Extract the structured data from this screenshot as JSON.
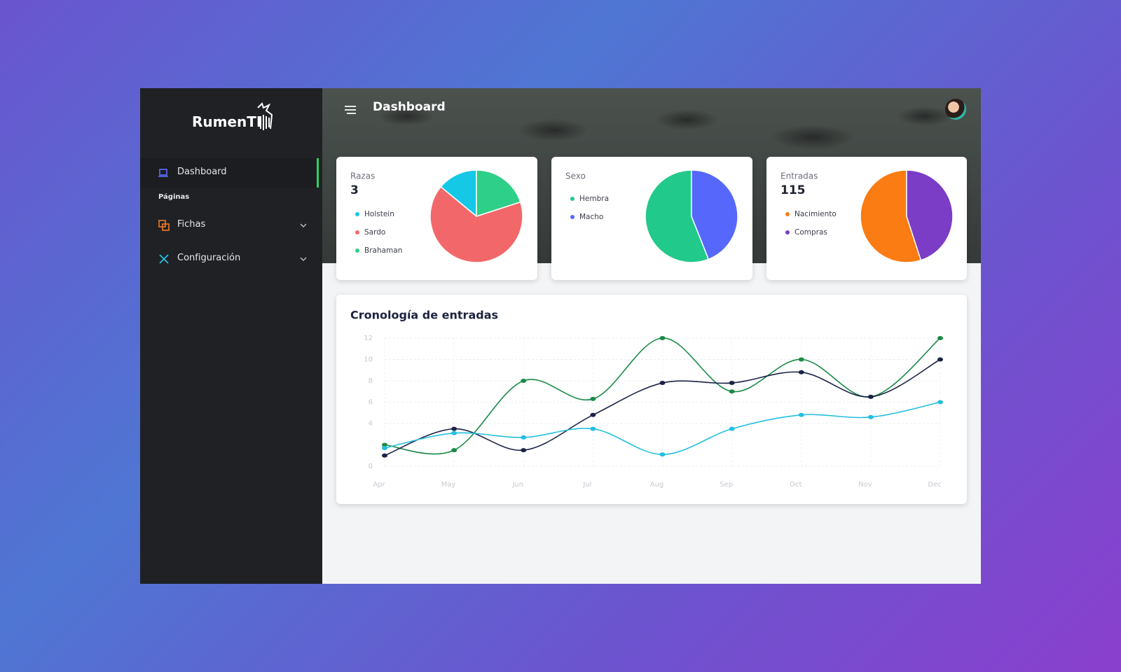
{
  "sidebar": {
    "brand": "RumenTI",
    "items": [
      "Dashboard"
    ],
    "section": "Páginas",
    "groups": [
      "Fichas",
      "Configuración"
    ]
  },
  "header": {
    "title": "Dashboard"
  },
  "chart_data": [
    {
      "type": "pie",
      "title": "Razas",
      "total": 3,
      "categories": [
        "Holstein",
        "Sardo",
        "Brahaman"
      ],
      "values": [
        14,
        66,
        20
      ],
      "colors": [
        "#14c8e6",
        "#f2686a",
        "#2ecf88"
      ]
    },
    {
      "type": "pie",
      "title": "Sexo",
      "categories": [
        "Hembra",
        "Macho"
      ],
      "values": [
        56,
        44
      ],
      "colors": [
        "#21c98a",
        "#5568fb"
      ]
    },
    {
      "type": "pie",
      "title": "Entradas",
      "total": 115,
      "categories": [
        "Nacimiento",
        "Compras"
      ],
      "values": [
        55,
        45
      ],
      "colors": [
        "#fb7c12",
        "#7b3cc6"
      ]
    },
    {
      "type": "line",
      "title": "Cronología de entradas",
      "categories": [
        "Apr",
        "May",
        "Jun",
        "Jul",
        "Aug",
        "Sep",
        "Oct",
        "Nov",
        "Dec"
      ],
      "series": [
        {
          "color": "#1a8a47",
          "values": [
            2,
            1.5,
            8,
            6.3,
            12,
            7,
            10,
            6.5,
            12
          ]
        },
        {
          "color": "#1c2347",
          "values": [
            1,
            3.5,
            1.5,
            4.8,
            7.8,
            7.8,
            8.8,
            6.5,
            10
          ]
        },
        {
          "color": "#22bfe0",
          "values": [
            1.7,
            3.1,
            2.7,
            3.5,
            1.1,
            3.5,
            4.8,
            4.6,
            6
          ]
        }
      ],
      "ylim": [
        0,
        12
      ],
      "yticks": [
        0,
        4,
        6,
        8,
        10,
        12
      ],
      "grid": true
    }
  ]
}
